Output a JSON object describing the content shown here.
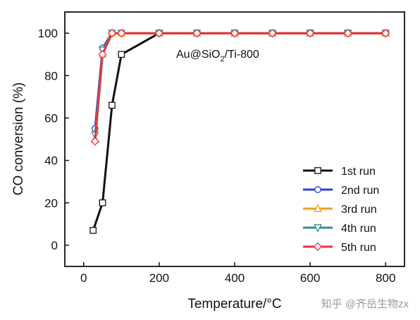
{
  "chart_data": {
    "type": "line",
    "xlabel": "Temperature/°C",
    "ylabel": "CO conversion (%)",
    "xlim": [
      -50,
      850
    ],
    "ylim": [
      -10,
      110
    ],
    "xticks": [
      0,
      200,
      400,
      600,
      800
    ],
    "yticks": [
      0,
      20,
      40,
      60,
      80,
      100
    ],
    "annotation": {
      "main": "Au@SiO",
      "sub": "2",
      "tail": "/Ti-800"
    },
    "grid": false,
    "legend_position": "lower-right",
    "series": [
      {
        "name": "1st run",
        "color": "#111111",
        "marker": "square",
        "x": [
          25,
          50,
          75,
          100,
          200,
          300,
          400,
          500,
          600,
          700,
          800
        ],
        "y": [
          7,
          20,
          66,
          90,
          100,
          100,
          100,
          100,
          100,
          100,
          100
        ]
      },
      {
        "name": "2nd run",
        "color": "#2b3fd6",
        "marker": "circle",
        "x": [
          30,
          50,
          75,
          100,
          200,
          300,
          400,
          500,
          600,
          700,
          800
        ],
        "y": [
          55,
          93,
          100,
          100,
          100,
          100,
          100,
          100,
          100,
          100,
          100
        ]
      },
      {
        "name": "3rd run",
        "color": "#f5a01a",
        "marker": "triangle-up",
        "x": [
          30,
          50,
          75,
          100,
          200,
          300,
          400,
          500,
          600,
          700,
          800
        ],
        "y": [
          50,
          90,
          100,
          100,
          100,
          100,
          100,
          100,
          100,
          100,
          100
        ]
      },
      {
        "name": "4th run",
        "color": "#3a8f8a",
        "marker": "triangle-down",
        "x": [
          30,
          50,
          75,
          100,
          200,
          300,
          400,
          500,
          600,
          700,
          800
        ],
        "y": [
          52,
          92,
          100,
          100,
          100,
          100,
          100,
          100,
          100,
          100,
          100
        ]
      },
      {
        "name": "5th run",
        "color": "#e8333b",
        "marker": "diamond",
        "x": [
          30,
          50,
          75,
          100,
          200,
          300,
          400,
          500,
          600,
          700,
          800
        ],
        "y": [
          49,
          90,
          100,
          100,
          100,
          100,
          100,
          100,
          100,
          100,
          100
        ]
      }
    ]
  },
  "watermark": "知乎 @齐岳生物zx"
}
